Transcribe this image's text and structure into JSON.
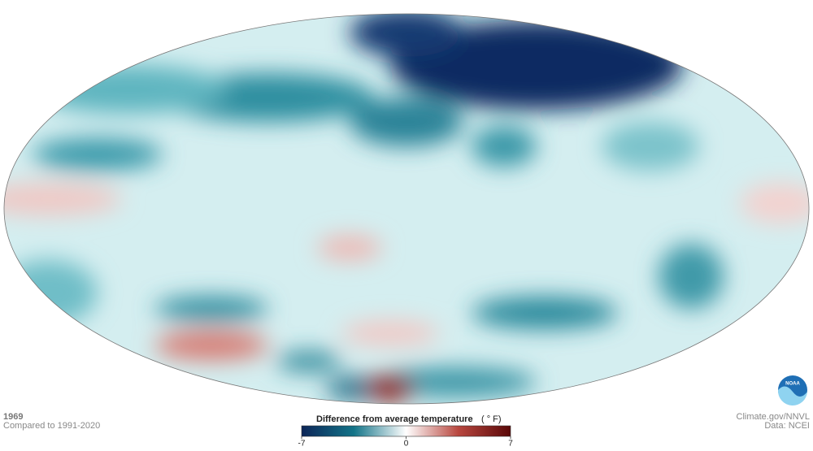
{
  "header": {
    "year": "1969",
    "comparison": "Compared to 1991-2020"
  },
  "legend": {
    "title": "Difference from average temperature",
    "unit": "( ° F)",
    "lim": [
      -7,
      7
    ],
    "ticks": [
      -7,
      0,
      7
    ]
  },
  "credits": {
    "source": "Climate.gov/NNVL",
    "data": "Data: NCEI"
  },
  "logo": {
    "text": "NOAA"
  }
}
